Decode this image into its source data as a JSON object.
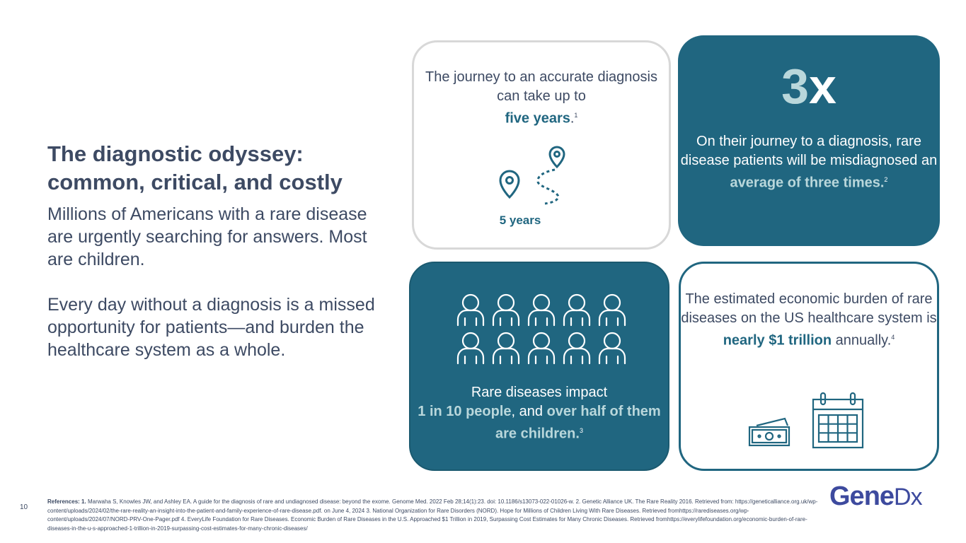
{
  "heading": {
    "title": "The diagnostic odyssey: common, critical, and costly",
    "paragraph_1": "Millions of Americans with a rare disease are urgently searching for answers. Most are children.",
    "paragraph_2": "Every day without a diagnosis is a missed opportunity for patients—and burden the healthcare system as a whole."
  },
  "card_journey": {
    "text_1": "The journey to an accurate diagnosis can take up to",
    "highlight": "five years",
    "text_2": ".",
    "footnote": "1",
    "label": "5 years",
    "icon": "map-pin-route-icon"
  },
  "card_misdiagnosed": {
    "big_number": "3",
    "big_suffix": "x",
    "text_1": "On their journey to a diagnosis, rare disease patients will be misdiagnosed an",
    "highlight": "average of three times.",
    "footnote": "2"
  },
  "card_children": {
    "text_1": "Rare diseases impact",
    "highlight_1": "1 in 10 people",
    "text_2": ", and",
    "highlight_2": "over half of them are children.",
    "footnote": "3",
    "icon": "people-group-icon"
  },
  "card_burden": {
    "text_1": "The estimated economic burden of rare diseases on the US healthcare system is",
    "highlight": "nearly $1 trillion",
    "text_2": "annually.",
    "footnote": "4",
    "icons": [
      "money-icon",
      "calendar-icon"
    ]
  },
  "footer": {
    "page_number": "10",
    "references_label": "References:",
    "references_number": "1.",
    "references_text": "Marwaha S, Knowles JW, and Ashley EA. A guide for the diagnosis of rare and undiagnosed disease: beyond the exome. Genome Med. 2022 Feb 28;14(1):23. doi: 10.1186/s13073-022-01026-w. 2. Genetic Alliance UK. The Rare Reality 2016. Retrieved from: https://geneticalliance.org.uk/wp-content/uploads/2024/02/the-rare-reality-an-insight-into-the-patient-and-family-experience-of-rare-disease.pdf. on June 4, 2024 3. National Organization for Rare Disorders (NORD). Hope for Millions of Children Living With Rare Diseases. Retrieved fromhttps://rarediseases.org/wp-content/uploads/2024/07/NORD-PRV-One-Pager.pdf 4. EveryLife Foundation for Rare Diseases. Economic Burden of Rare Diseases in the U.S. Approached $1 Trillion in 2019, Surpassing Cost Estimates for Many Chronic Diseases. Retrieved fromhttps://everylifefoundation.org/economic-burden-of-rare-diseases-in-the-u-s-approached-1-trillion-in-2019-surpassing-cost-estimates-for-many-chronic-diseases/",
    "logo_main": "Gene",
    "logo_suffix": "Dx"
  },
  "colors": {
    "teal": "#206680",
    "light_teal": "#b9d7db",
    "text": "#3d4a63",
    "logo": "#3d4a9e"
  }
}
